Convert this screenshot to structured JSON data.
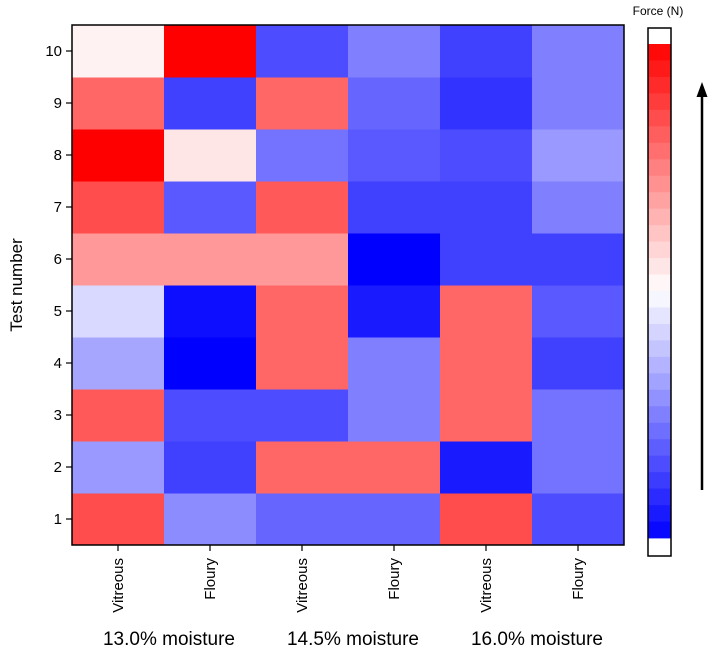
{
  "chart_data": {
    "type": "heatmap",
    "ylabel": "Test number",
    "x_categories": [
      "Vitreous",
      "Floury",
      "Vitreous",
      "Floury",
      "Vitreous",
      "Floury"
    ],
    "x_groups": [
      "13.0% moisture",
      "14.5% moisture",
      "16.0% moisture"
    ],
    "y_categories": [
      "1",
      "2",
      "3",
      "4",
      "5",
      "6",
      "7",
      "8",
      "9",
      "10"
    ],
    "value_scale": "normalized force, -1 = blue (low) … 0 = white … 1 = red (high)",
    "values": [
      [
        0.7,
        -0.45,
        -0.6,
        -0.6,
        0.7,
        -0.7
      ],
      [
        -0.4,
        -0.75,
        0.6,
        0.6,
        -0.9,
        -0.55
      ],
      [
        0.65,
        -0.7,
        -0.7,
        -0.5,
        0.6,
        -0.55
      ],
      [
        -0.35,
        -1.0,
        0.6,
        -0.5,
        0.6,
        -0.75
      ],
      [
        -0.15,
        -0.95,
        0.6,
        -0.9,
        0.6,
        -0.65
      ],
      [
        0.4,
        0.4,
        0.4,
        -1.0,
        -0.75,
        -0.75
      ],
      [
        0.7,
        -0.65,
        0.65,
        -0.75,
        -0.75,
        -0.5
      ],
      [
        1.0,
        0.1,
        -0.55,
        -0.65,
        -0.7,
        -0.4
      ],
      [
        0.6,
        -0.75,
        0.6,
        -0.6,
        -0.8,
        -0.5
      ],
      [
        0.05,
        1.0,
        -0.7,
        -0.5,
        -0.75,
        -0.5
      ]
    ],
    "colorbar": {
      "title": "Force (N)",
      "steps": 30,
      "low_color": "#0000ff",
      "mid_color": "#ffffff",
      "high_color": "#ff0000"
    }
  }
}
